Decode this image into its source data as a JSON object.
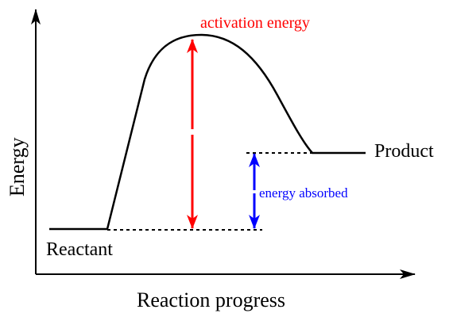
{
  "labels": {
    "y_axis": "Energy",
    "x_axis": "Reaction progress",
    "reactant": "Reactant",
    "product": "Product",
    "activation_energy": "activation energy",
    "energy_absorbed": "energy absorbed"
  },
  "colors": {
    "curve": "#000000",
    "activation_arrow": "#ff0000",
    "absorbed_arrow": "#0000ff",
    "axes": "#000000",
    "guides": "#000000"
  }
}
